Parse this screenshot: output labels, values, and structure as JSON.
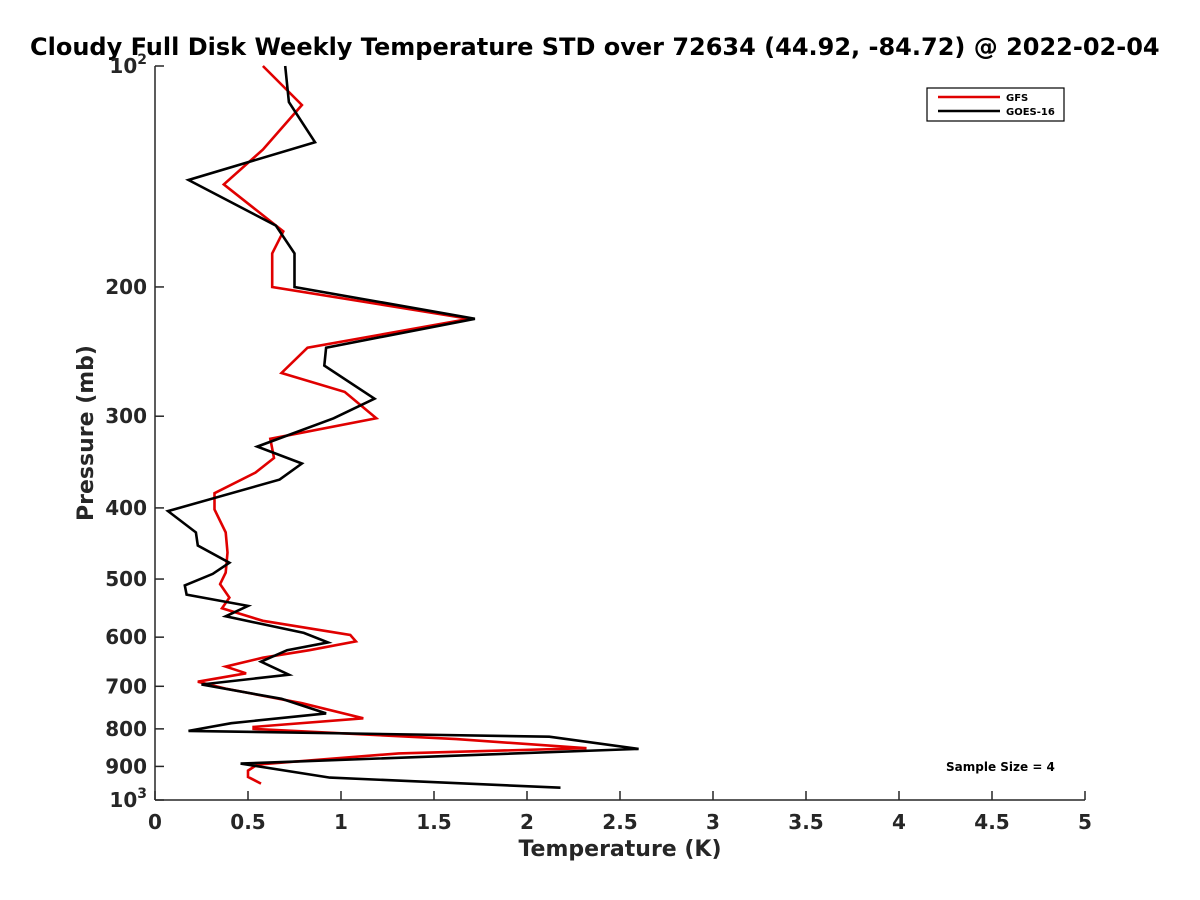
{
  "chart_data": {
    "type": "line",
    "title": "Cloudy Full Disk Weekly Temperature STD over 72634 (44.92, -84.72) @ 2022-02-04",
    "xlabel": "Temperature (K)",
    "ylabel": "Pressure (mb)",
    "xlim": [
      0,
      5
    ],
    "ylim": [
      100,
      1000
    ],
    "y_scale": "log",
    "y_reversed": true,
    "grid": false,
    "x_ticks": [
      "0",
      "0.5",
      "1",
      "1.5",
      "2",
      "2.5",
      "3",
      "3.5",
      "4",
      "4.5",
      "5"
    ],
    "y_ticks": [
      {
        "value": 100,
        "base": "10",
        "exp": "2"
      },
      {
        "value": 200,
        "label": "200"
      },
      {
        "value": 300,
        "label": "300"
      },
      {
        "value": 400,
        "label": "400"
      },
      {
        "value": 500,
        "label": "500"
      },
      {
        "value": 600,
        "label": "600"
      },
      {
        "value": 700,
        "label": "700"
      },
      {
        "value": 800,
        "label": "800"
      },
      {
        "value": 900,
        "label": "900"
      },
      {
        "value": 1000,
        "base": "10",
        "exp": "3"
      }
    ],
    "legend": {
      "position": "top-right"
    },
    "series": [
      {
        "name": "GFS",
        "color": "#e00000",
        "points": [
          [
            0.58,
            100
          ],
          [
            0.79,
            113
          ],
          [
            0.58,
            130
          ],
          [
            0.37,
            145
          ],
          [
            0.69,
            168
          ],
          [
            0.63,
            180
          ],
          [
            0.63,
            200
          ],
          [
            1.69,
            221
          ],
          [
            0.82,
            242
          ],
          [
            0.68,
            262
          ],
          [
            1.02,
            278
          ],
          [
            1.19,
            302
          ],
          [
            0.62,
            322
          ],
          [
            0.64,
            342
          ],
          [
            0.54,
            358
          ],
          [
            0.32,
            382
          ],
          [
            0.32,
            402
          ],
          [
            0.38,
            432
          ],
          [
            0.39,
            460
          ],
          [
            0.38,
            490
          ],
          [
            0.35,
            508
          ],
          [
            0.4,
            530
          ],
          [
            0.36,
            548
          ],
          [
            0.58,
            570
          ],
          [
            1.05,
            596
          ],
          [
            1.08,
            608
          ],
          [
            0.83,
            625
          ],
          [
            0.58,
            640
          ],
          [
            0.38,
            658
          ],
          [
            0.49,
            672
          ],
          [
            0.23,
            690
          ],
          [
            0.38,
            705
          ],
          [
            0.79,
            738
          ],
          [
            1.12,
            774
          ],
          [
            0.53,
            795
          ],
          [
            0.53,
            800
          ],
          [
            1.62,
            826
          ],
          [
            2.32,
            850
          ],
          [
            1.31,
            864
          ],
          [
            0.55,
            895
          ],
          [
            0.5,
            912
          ],
          [
            0.5,
            930
          ],
          [
            0.57,
            950
          ]
        ]
      },
      {
        "name": "GOES-16",
        "color": "#000000",
        "points": [
          [
            0.7,
            100
          ],
          [
            0.72,
            112
          ],
          [
            0.86,
            127
          ],
          [
            0.18,
            143
          ],
          [
            0.65,
            165
          ],
          [
            0.75,
            180
          ],
          [
            0.75,
            200
          ],
          [
            1.72,
            221
          ],
          [
            0.92,
            242
          ],
          [
            0.91,
            256
          ],
          [
            1.18,
            284
          ],
          [
            0.96,
            302
          ],
          [
            0.55,
            330
          ],
          [
            0.79,
            348
          ],
          [
            0.67,
            366
          ],
          [
            0.07,
            404
          ],
          [
            0.22,
            432
          ],
          [
            0.23,
            450
          ],
          [
            0.4,
            475
          ],
          [
            0.31,
            492
          ],
          [
            0.16,
            510
          ],
          [
            0.17,
            525
          ],
          [
            0.5,
            544
          ],
          [
            0.38,
            562
          ],
          [
            0.8,
            592
          ],
          [
            0.93,
            610
          ],
          [
            0.71,
            625
          ],
          [
            0.57,
            648
          ],
          [
            0.72,
            675
          ],
          [
            0.25,
            696
          ],
          [
            0.68,
            728
          ],
          [
            0.92,
            762
          ],
          [
            0.41,
            786
          ],
          [
            0.18,
            805
          ],
          [
            2.12,
            820
          ],
          [
            2.6,
            852
          ],
          [
            0.46,
            892
          ],
          [
            0.94,
            932
          ],
          [
            2.18,
            962
          ]
        ]
      }
    ],
    "annotations": [
      "Sample Size = 4"
    ]
  }
}
